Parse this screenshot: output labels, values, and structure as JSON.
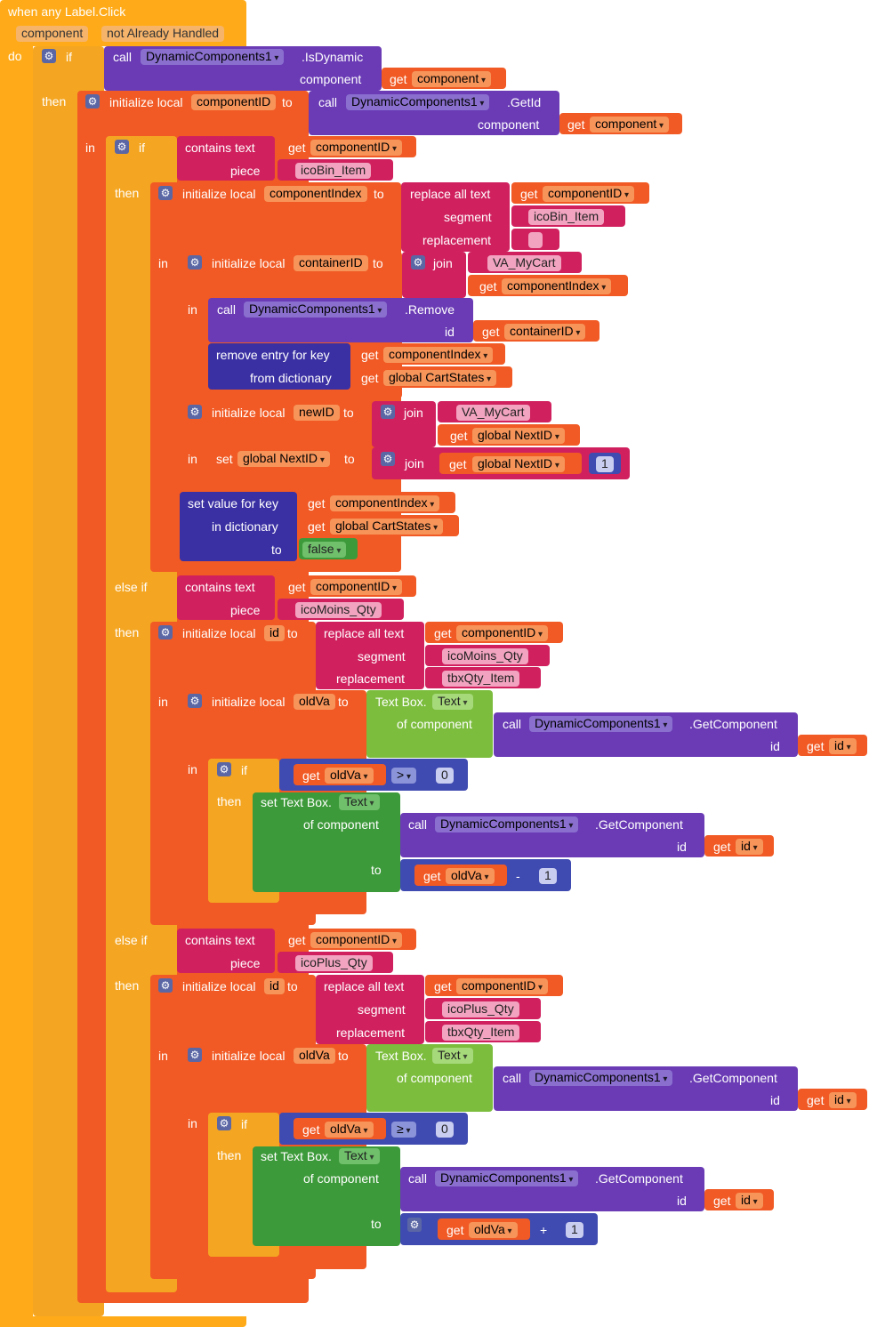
{
  "event": {
    "title": "when any Label.Click",
    "param1": "component",
    "param2": "not Already Handled",
    "do": "do"
  },
  "kw": {
    "if": "if",
    "then": "then",
    "in": "in",
    "else_if": "else if",
    "call": "call",
    "to": "to",
    "id": "id",
    "component": "component",
    "piece": "piece",
    "segment": "segment",
    "replacement": "replacement",
    "of_component": "of component",
    "from_dictionary": "from dictionary",
    "in_dictionary": "in dictionary",
    "join": "join",
    "get": "get",
    "set": "set",
    "initialize_local": "initialize local",
    "contains_text": "contains  text",
    "replace_all_text": "replace all text",
    "remove_entry": "remove entry for key",
    "set_value": "set value for key",
    "set_textbox": "set Text Box.",
    "textbox": "Text Box.",
    "text_prop": "Text",
    "false": "false"
  },
  "comp": {
    "dc": "DynamicComponents1",
    "is_dynamic": ".IsDynamic",
    "get_id": ".GetId",
    "remove": ".Remove",
    "get_component": ".GetComponent"
  },
  "vars": {
    "component": "component",
    "componentID": "componentID",
    "componentIndex": "componentIndex",
    "containerID": "containerID",
    "newID": "newID",
    "id": "id",
    "oldVa": "oldVa",
    "global_nextid": "global NextID",
    "global_cartstates": "global CartStates"
  },
  "strings": {
    "icoBin": "icoBin_Item",
    "empty": "",
    "va_mycart": "VA_MyCart",
    "icoMoins": "icoMoins_Qty",
    "tbxQty": "tbxQty_Item",
    "icoPlus": "icoPlus_Qty"
  },
  "ops": {
    "gt": ">",
    "ge": "≥",
    "minus": "-",
    "plus": "+"
  },
  "nums": {
    "zero": "0",
    "one": "1"
  }
}
